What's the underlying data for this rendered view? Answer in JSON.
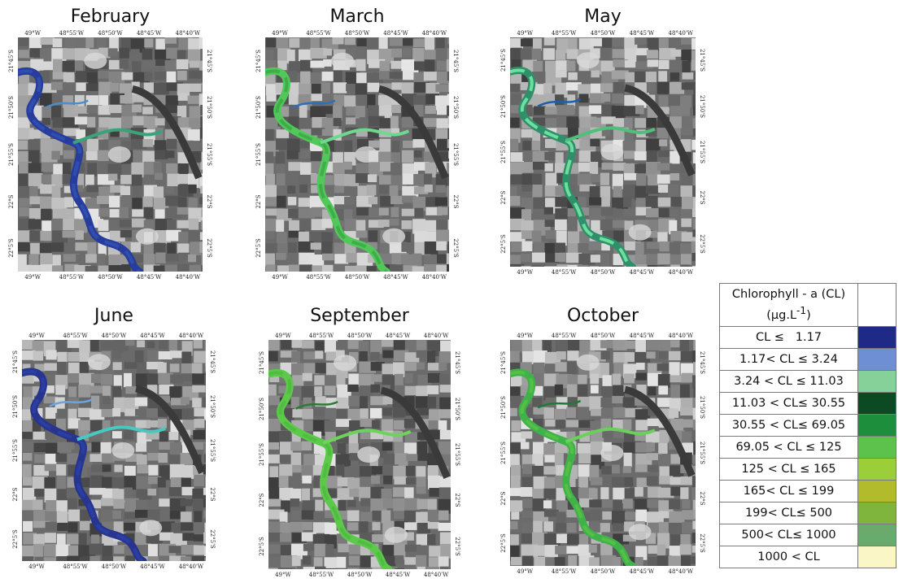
{
  "panels": [
    {
      "month": "February",
      "scheme": "blue",
      "top_ticks": [
        "49°W",
        "48°55'W",
        "48°50'W",
        "48°45'W",
        "48°40'W"
      ],
      "bottom_ticks": [
        "49°W",
        "48°55'W",
        "48°50'W",
        "48°45'W",
        "48°40'W"
      ],
      "left_ticks": [
        "21°45'S",
        "21°50'S",
        "21°55'S",
        "22°S",
        "22°5'S"
      ],
      "right_ticks": [
        "21°45'S",
        "21°50'S",
        "21°55'S",
        "22°S",
        "22°5'S"
      ]
    },
    {
      "month": "March",
      "scheme": "green",
      "top_ticks": [
        "49°W",
        "48°55'W",
        "48°50'W",
        "48°45'W",
        "48°40'W"
      ],
      "bottom_ticks": [
        "49°W",
        "48°55'W",
        "48°50'W",
        "48°45'W",
        "48°40'W"
      ],
      "left_ticks": [
        "21°45'S",
        "21°50'S",
        "21°55'S",
        "22°S",
        "22°5'S"
      ],
      "right_ticks": [
        "21°45'S",
        "21°50'S",
        "21°55'S",
        "22°S",
        "22°5'S"
      ]
    },
    {
      "month": "May",
      "scheme": "teal",
      "top_ticks": [
        "49°W",
        "48°55'W",
        "48°50'W",
        "48°45'W",
        "48°40'W"
      ],
      "bottom_ticks": [
        "49°W",
        "48°55'W",
        "48°50'W",
        "48°45'W",
        "48°40'W"
      ],
      "left_ticks": [
        "21°45'S",
        "21°50'S",
        "21°55'S",
        "22°S",
        "22°5'S"
      ],
      "right_ticks": [
        "21°45'S",
        "21°50'S",
        "21°55'S",
        "22°S",
        "22°5'S"
      ]
    },
    {
      "month": "June",
      "scheme": "darkblue",
      "top_ticks": [
        "49°W",
        "48°55'W",
        "48°50'W",
        "48°45'W",
        "48°40'W"
      ],
      "bottom_ticks": [
        "49°W",
        "48°55'W",
        "48°50'W",
        "48°45'W",
        "48°40'W"
      ],
      "left_ticks": [
        "21°45'S",
        "21°50'S",
        "21°55'S",
        "22°S",
        "22°5'S"
      ],
      "right_ticks": [
        "21°45'S",
        "21°50'S",
        "21°55'S",
        "22°S",
        "22°5'S"
      ]
    },
    {
      "month": "September",
      "scheme": "lightgreen",
      "top_ticks": [
        "49°W",
        "48°55'W",
        "48°50'W",
        "48°45'W",
        "48°40'W"
      ],
      "bottom_ticks": [
        "49°W",
        "48°55'W",
        "48°50'W",
        "48°45'W",
        "48°40'W"
      ],
      "left_ticks": [
        "21°45'S",
        "21°50'S",
        "21°55'S",
        "22°S",
        "22°5'S"
      ],
      "right_ticks": [
        "21°45'S",
        "21°50'S",
        "21°55'S",
        "22°S",
        "22°5'S"
      ]
    },
    {
      "month": "October",
      "scheme": "midgreen",
      "top_ticks": [
        "49°W",
        "48°55'W",
        "48°50'W",
        "48°45'W",
        "48°40'W"
      ],
      "bottom_ticks": [
        "49°W",
        "48°55'W",
        "48°50'W",
        "48°45'W",
        "48°40'W"
      ],
      "left_ticks": [
        "21°45'S",
        "21°50'S",
        "21°55'S",
        "22°S",
        "22°5'S"
      ],
      "right_ticks": [
        "21°45'S",
        "21°50'S",
        "21°55'S",
        "22°S",
        "22°5'S"
      ]
    }
  ],
  "schemes": {
    "blue": [
      "#283c9e",
      "#2f4fb0",
      "#4f8cc9",
      "#3aa37a"
    ],
    "green": [
      "#52c85a",
      "#3fae4a",
      "#2f6fb8",
      "#6fd88f"
    ],
    "teal": [
      "#2f8f6a",
      "#6ddf9c",
      "#1e5fa8",
      "#4fc07a"
    ],
    "darkblue": [
      "#27358f",
      "#2b3fa3",
      "#6da3dc",
      "#48c9c0"
    ],
    "lightgreen": [
      "#5cc94a",
      "#4fbd3f",
      "#2d7a37",
      "#6ed25c"
    ],
    "midgreen": [
      "#3fb24a",
      "#56c046",
      "#1f7a3a",
      "#6ad05b"
    ]
  },
  "legend": {
    "header_line1": "Chlorophyll - a (CL)",
    "header_line2": "(µg.L",
    "header_sup": "-1",
    "header_close": ")",
    "classes": [
      {
        "label": "CL ≤   1.17",
        "color": "#1f2a86"
      },
      {
        "label": "1.17< CL ≤ 3.24",
        "color": "#6f8fd4"
      },
      {
        "label": "3.24 < CL ≤ 11.03",
        "color": "#86d19a"
      },
      {
        "label": "11.03 < CL≤ 30.55",
        "color": "#0c4a24"
      },
      {
        "label": "30.55 < CL≤ 69.05",
        "color": "#1d8f3c"
      },
      {
        "label": "69.05 < CL ≤ 125",
        "color": "#5cc24c"
      },
      {
        "label": "125 < CL ≤ 165",
        "color": "#9bcf3a"
      },
      {
        "label": "165< CL ≤ 199",
        "color": "#b1bb2b"
      },
      {
        "label": "199< CL≤ 500",
        "color": "#7fb53d"
      },
      {
        "label": "500< CL≤ 1000",
        "color": "#6aaa6c"
      },
      {
        "label": "1000 < CL",
        "color": "#faf6c6"
      }
    ]
  }
}
